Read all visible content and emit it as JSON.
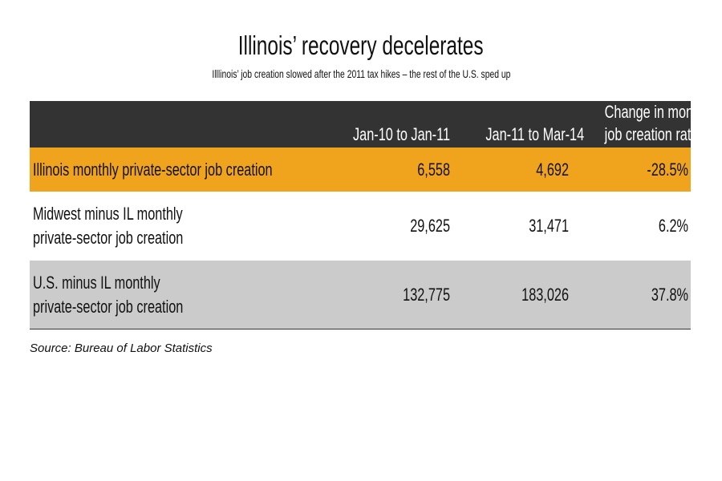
{
  "chart_data": {
    "type": "table",
    "title": "Illinois’ recovery decelerates",
    "subtitle": "Illlinois’ job creation slowed after the 2011 tax hikes – the rest of the U.S. sped up",
    "columns": [
      "Jan-10 to Jan-11",
      "Jan-11 to Mar-14",
      [
        "Change in monthly",
        "job creation rate"
      ]
    ],
    "rows": [
      {
        "label": [
          "Illinois monthly private-sector job creation"
        ],
        "values": [
          "6,558",
          "4,692",
          "-28.5%"
        ],
        "color": "#f0a41e"
      },
      {
        "label": [
          "Midwest minus IL monthly",
          "private-sector job creation"
        ],
        "values": [
          "29,625",
          "31,471",
          "6.2%"
        ],
        "color": "#ffffff"
      },
      {
        "label": [
          "U.S. minus IL monthly",
          "private-sector job creation"
        ],
        "values": [
          "132,775",
          "183,026",
          "37.8%"
        ],
        "color": "#cbcbcb"
      }
    ],
    "source": "Source: Bureau of Labor Statistics",
    "header_color": "#333333"
  }
}
